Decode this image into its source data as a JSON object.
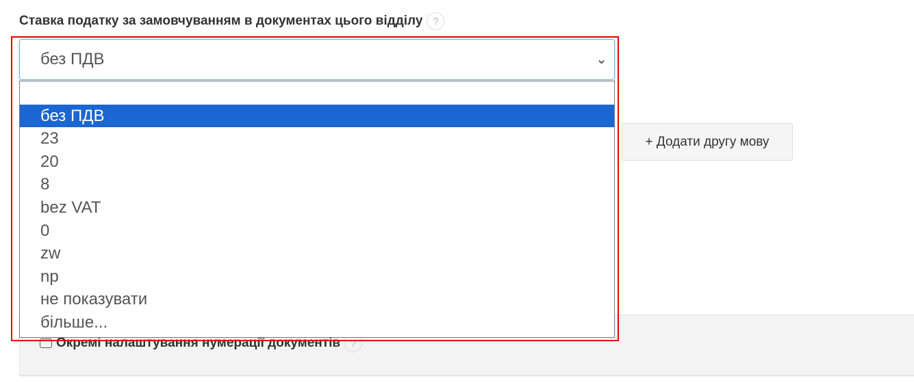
{
  "field": {
    "label": "Ставка податку за замовчуванням в документах цього відділу",
    "help": "?",
    "selected": "без ПДВ"
  },
  "options": [
    "",
    "без ПДВ",
    "23",
    "20",
    "8",
    "bez VAT",
    "0",
    "zw",
    "np",
    "не показувати",
    "більше..."
  ],
  "selected_index": 1,
  "add_language_button": "+ Додати другу мову",
  "numbering": {
    "label": "Окремі налаштування нумерації документів",
    "help": "?"
  },
  "colors": {
    "highlight": "#1a66d2",
    "annotation": "#ee0000"
  }
}
